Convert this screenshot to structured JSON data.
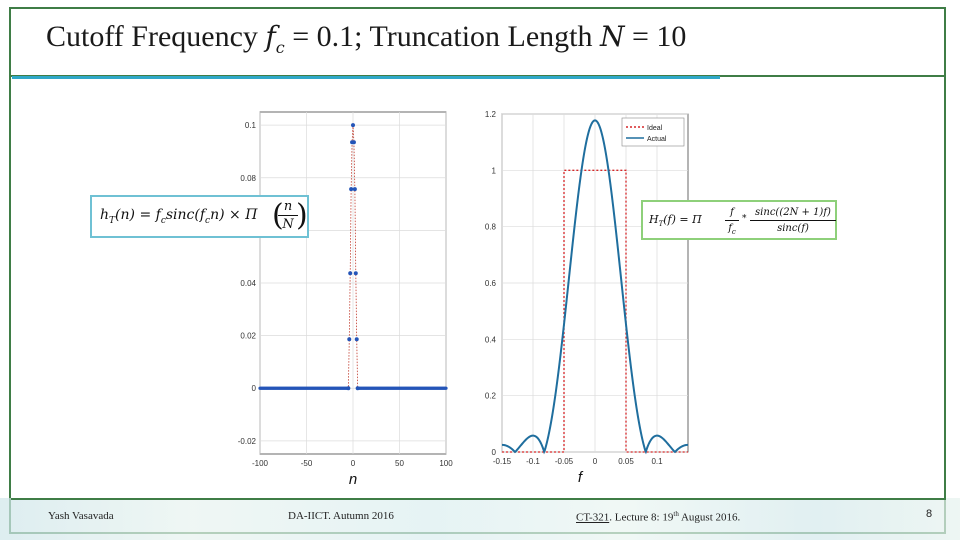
{
  "slide": {
    "title_text": "Cutoff Frequency ",
    "title_fc": "f",
    "title_fc_sub": "c",
    "title_mid": " = 0.1; Truncation Length ",
    "title_N": "N",
    "title_end": " = 10"
  },
  "equations": {
    "left": "h",
    "left_sub": "T",
    "left_rest": "(n) = f",
    "left_c": "c",
    "left_sinc": "sinc(f",
    "left_c2": "c",
    "left_n": "n) × Π",
    "left_frac_num": "n",
    "left_frac_den": "N",
    "right_lhs": "H",
    "right_sub": "T",
    "right_rest": "(f) = Π",
    "right_frac_num": "f",
    "right_frac_den": "f",
    "right_frac_den_sub": "c",
    "right_star": "*",
    "right_sinc_num": "sinc((2N + 1)f)",
    "right_sinc_den": "sinc(f)"
  },
  "footer": {
    "author": "Yash Vasavada",
    "institute": "DA-IICT.  Autumn 2016",
    "course": "CT-321",
    "lecture": ". Lecture 8:  19",
    "lecture_sup": "th",
    "lecture_end": " August 2016.",
    "page": "8"
  },
  "chart_data": [
    {
      "type": "scatter",
      "title": "",
      "xlabel": "n",
      "ylabel": "",
      "xlim": [
        -100,
        100
      ],
      "ylim": [
        -0.025,
        0.105
      ],
      "xticks": [
        "-100",
        "-50",
        "0",
        "50",
        "100"
      ],
      "yticks": [
        "-0.02",
        "0",
        "0.02",
        "0.04",
        "0.06",
        "0.08",
        "0.1"
      ],
      "grid": true,
      "color": "#2455b8",
      "line_color": "#c0392b",
      "x": [
        -5,
        -4,
        -3,
        -2,
        -1,
        0,
        1,
        2,
        3,
        4,
        5
      ],
      "values": [
        0.0,
        0.0186,
        0.0437,
        0.0757,
        0.0935,
        0.1,
        0.0935,
        0.0757,
        0.0437,
        0.0186,
        0.0
      ],
      "zero_region": [
        [
          -100,
          -6
        ],
        [
          6,
          100
        ]
      ]
    },
    {
      "type": "line",
      "title": "",
      "xlabel": "f",
      "ylabel": "",
      "xlim": [
        -0.15,
        0.15
      ],
      "ylim": [
        0,
        1.2
      ],
      "xticks": [
        "-0.15",
        "-0.1",
        "-0.05",
        "0",
        "0.05",
        "0.1"
      ],
      "yticks": [
        "0",
        "0.2",
        "0.4",
        "0.6",
        "0.8",
        "1",
        "1.2"
      ],
      "grid": true,
      "legend_position": "top-right",
      "series": [
        {
          "name": "Ideal",
          "color": "#d62728",
          "style": "dotted"
        },
        {
          "name": "Actual",
          "color": "#1f6e9e",
          "style": "solid"
        }
      ],
      "ideal_cutoff": 0.05,
      "N": 10,
      "fc": 0.1
    }
  ]
}
